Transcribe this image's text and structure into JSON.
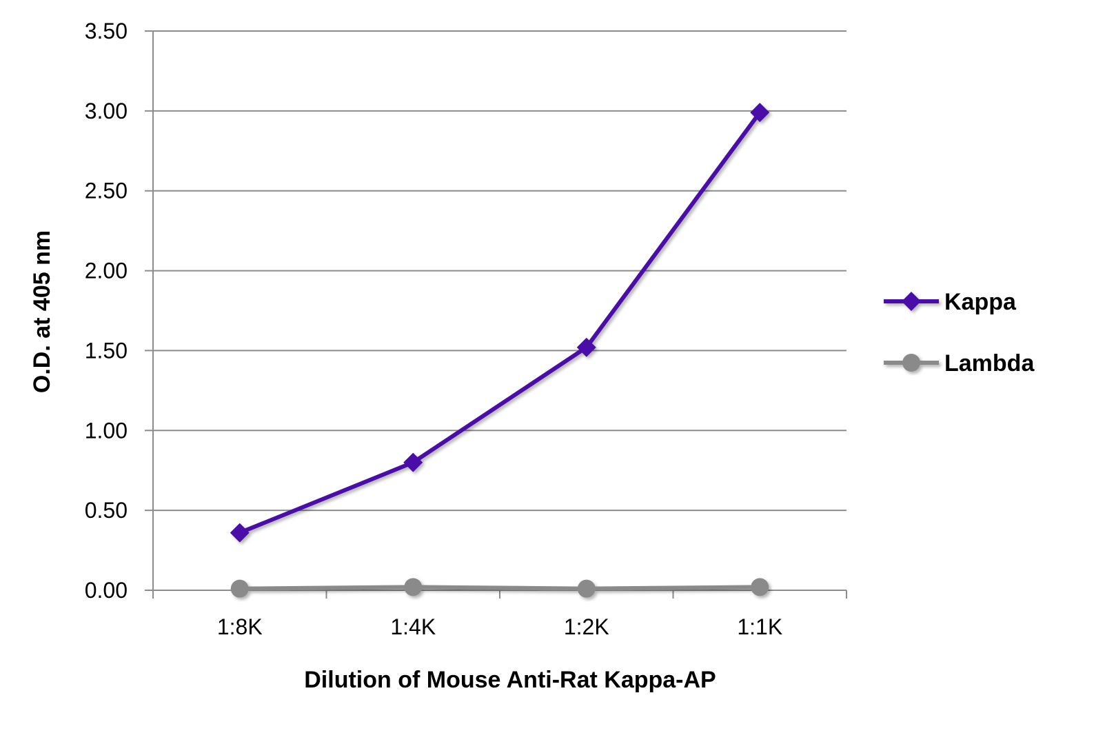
{
  "chart_data": {
    "type": "line",
    "title": "",
    "xlabel": "Dilution of Mouse Anti-Rat Kappa-AP",
    "ylabel": "O.D. at 405 nm",
    "categories": [
      "1:8K",
      "1:4K",
      "1:2K",
      "1:1K"
    ],
    "ylim": [
      0,
      3.5
    ],
    "yticks": [
      "0.00",
      "0.50",
      "1.00",
      "1.50",
      "2.00",
      "2.50",
      "3.00",
      "3.50"
    ],
    "grid": true,
    "legend_position": "right",
    "series": [
      {
        "name": "Kappa",
        "values": [
          0.36,
          0.8,
          1.52,
          2.99
        ],
        "color": "#4b0fa8",
        "marker": "diamond"
      },
      {
        "name": "Lambda",
        "values": [
          0.01,
          0.02,
          0.01,
          0.02
        ],
        "color": "#8a8a8a",
        "marker": "circle"
      }
    ]
  }
}
